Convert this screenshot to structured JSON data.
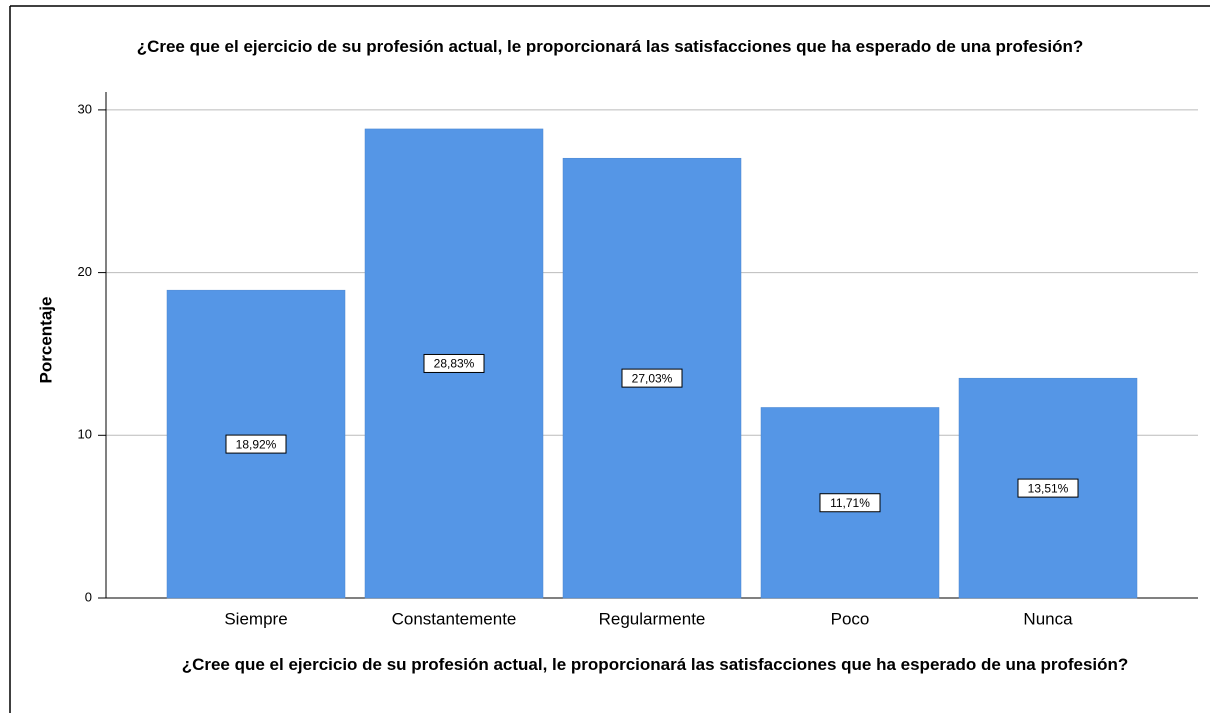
{
  "chart_data": {
    "type": "bar",
    "title": "¿Cree que el ejercicio de su profesión actual, le proporcionará las satisfacciones que ha esperado de una profesión?",
    "x_label": "¿Cree que el ejercicio de su profesión actual, le proporcionará las satisfacciones que ha esperado de una profesión?",
    "y_label": "Porcentaje",
    "categories": [
      "Siempre",
      "Constantemente",
      "Regularmente",
      "Poco",
      "Nunca"
    ],
    "values": [
      18.92,
      28.83,
      27.03,
      11.71,
      13.51
    ],
    "value_labels": [
      "18,92%",
      "28,83%",
      "27,03%",
      "11,71%",
      "13,51%"
    ],
    "color": "#5596e6",
    "ylim": [
      0,
      31.1
    ],
    "yticks": [
      0,
      10,
      20,
      30
    ],
    "grid": true
  }
}
